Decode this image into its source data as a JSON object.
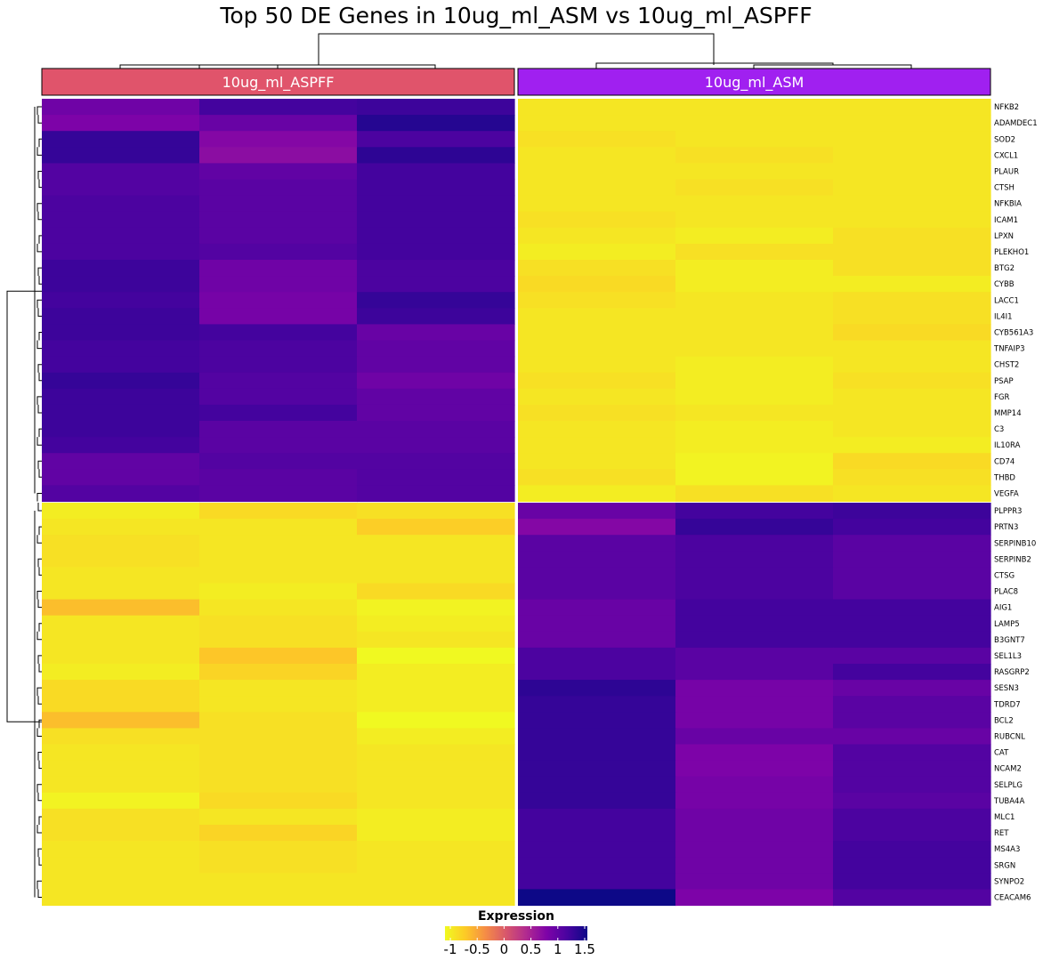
{
  "chart_data": {
    "type": "heatmap",
    "title": "Top 50 DE Genes in 10ug_ml_ASM vs 10ug_ml_ASPFF",
    "groups": [
      {
        "name": "10ug_ml_ASPFF",
        "color": "#e0546b"
      },
      {
        "name": "10ug_ml_ASM",
        "color": "#a020f0"
      }
    ],
    "genes": [
      "NFKB2",
      "ADAMDEC1",
      "SOD2",
      "CXCL1",
      "PLAUR",
      "CTSH",
      "NFKBIA",
      "ICAM1",
      "LPXN",
      "PLEKHO1",
      "BTG2",
      "CYBB",
      "LACC1",
      "IL4I1",
      "CYB561A3",
      "TNFAIP3",
      "CHST2",
      "PSAP",
      "FGR",
      "MMP14",
      "C3",
      "IL10RA",
      "CD74",
      "THBD",
      "VEGFA",
      "PLPPR3",
      "PRTN3",
      "SERPINB10",
      "SERPINB2",
      "CTSG",
      "PLAC8",
      "AIG1",
      "LAMP5",
      "B3GNT7",
      "SEL1L3",
      "RASGRP2",
      "SESN3",
      "TDRD7",
      "BCL2",
      "RUBCNL",
      "CAT",
      "NCAM2",
      "SELPLG",
      "TUBA4A",
      "MLC1",
      "RET",
      "MS4A3",
      "SRGN",
      "SYNPO2",
      "CEACAM6"
    ],
    "values": [
      [
        0.9,
        1.2,
        1.25,
        -0.95,
        -0.95,
        -0.95
      ],
      [
        0.8,
        0.95,
        1.4,
        -0.95,
        -0.95,
        -0.95
      ],
      [
        1.3,
        0.75,
        1.15,
        -0.9,
        -0.95,
        -0.95
      ],
      [
        1.3,
        0.7,
        1.35,
        -0.95,
        -0.9,
        -0.95
      ],
      [
        1.1,
        1.0,
        1.2,
        -0.95,
        -0.95,
        -0.95
      ],
      [
        1.1,
        1.05,
        1.2,
        -0.95,
        -0.9,
        -0.95
      ],
      [
        1.15,
        1.05,
        1.2,
        -0.95,
        -0.95,
        -0.95
      ],
      [
        1.15,
        1.05,
        1.2,
        -0.9,
        -0.95,
        -0.95
      ],
      [
        1.15,
        1.05,
        1.2,
        -0.95,
        -1.0,
        -0.9
      ],
      [
        1.15,
        1.1,
        1.2,
        -1.0,
        -0.9,
        -0.9
      ],
      [
        1.25,
        0.9,
        1.15,
        -0.9,
        -1.0,
        -0.9
      ],
      [
        1.25,
        0.9,
        1.15,
        -0.85,
        -1.0,
        -1.0
      ],
      [
        1.2,
        0.85,
        1.3,
        -0.9,
        -0.95,
        -0.9
      ],
      [
        1.25,
        0.85,
        1.25,
        -0.95,
        -0.95,
        -0.9
      ],
      [
        1.25,
        1.2,
        0.95,
        -0.95,
        -0.95,
        -0.85
      ],
      [
        1.2,
        1.15,
        1.0,
        -0.95,
        -0.95,
        -0.95
      ],
      [
        1.2,
        1.15,
        1.0,
        -0.95,
        -1.0,
        -0.95
      ],
      [
        1.3,
        1.1,
        0.9,
        -0.9,
        -1.0,
        -0.9
      ],
      [
        1.25,
        1.1,
        1.0,
        -0.95,
        -1.0,
        -0.95
      ],
      [
        1.25,
        1.2,
        1.0,
        -0.9,
        -0.95,
        -0.95
      ],
      [
        1.25,
        1.05,
        1.05,
        -0.95,
        -1.0,
        -0.95
      ],
      [
        1.2,
        1.05,
        1.05,
        -0.95,
        -1.0,
        -1.0
      ],
      [
        1.0,
        1.1,
        1.1,
        -0.95,
        -1.05,
        -0.85
      ],
      [
        1.0,
        1.05,
        1.1,
        -0.9,
        -1.05,
        -0.9
      ],
      [
        1.1,
        1.05,
        1.1,
        -1.0,
        -0.9,
        -0.95
      ],
      [
        -1.0,
        -0.85,
        -0.9,
        0.95,
        1.2,
        1.25
      ],
      [
        -0.95,
        -0.95,
        -0.75,
        0.75,
        1.3,
        1.2
      ],
      [
        -0.9,
        -0.95,
        -0.95,
        1.05,
        1.15,
        1.05
      ],
      [
        -0.9,
        -0.95,
        -0.95,
        1.05,
        1.15,
        1.05
      ],
      [
        -0.95,
        -0.95,
        -0.95,
        1.05,
        1.15,
        1.05
      ],
      [
        -0.95,
        -1.0,
        -0.85,
        1.05,
        1.15,
        1.05
      ],
      [
        -0.65,
        -0.95,
        -1.05,
        0.95,
        1.2,
        1.2
      ],
      [
        -0.95,
        -0.9,
        -1.0,
        0.95,
        1.2,
        1.2
      ],
      [
        -0.95,
        -0.9,
        -0.95,
        0.95,
        1.2,
        1.2
      ],
      [
        -0.95,
        -0.7,
        -1.15,
        1.15,
        1.05,
        1.05
      ],
      [
        -1.0,
        -0.8,
        -1.0,
        1.15,
        1.05,
        1.2
      ],
      [
        -0.85,
        -0.95,
        -1.0,
        1.35,
        0.85,
        0.95
      ],
      [
        -0.85,
        -0.95,
        -1.0,
        1.3,
        0.85,
        1.05
      ],
      [
        -0.65,
        -0.9,
        -1.1,
        1.3,
        0.85,
        1.05
      ],
      [
        -0.9,
        -0.9,
        -1.0,
        1.3,
        0.95,
        0.95
      ],
      [
        -0.95,
        -0.9,
        -0.95,
        1.3,
        0.8,
        1.1
      ],
      [
        -0.95,
        -0.9,
        -0.95,
        1.3,
        0.8,
        1.1
      ],
      [
        -0.95,
        -0.9,
        -0.95,
        1.3,
        0.85,
        1.1
      ],
      [
        -1.05,
        -0.85,
        -0.95,
        1.3,
        0.85,
        1.05
      ],
      [
        -0.9,
        -0.95,
        -1.0,
        1.2,
        0.9,
        1.15
      ],
      [
        -0.9,
        -0.8,
        -1.0,
        1.2,
        0.9,
        1.15
      ],
      [
        -0.95,
        -0.9,
        -0.95,
        1.2,
        0.9,
        1.2
      ],
      [
        -0.95,
        -0.9,
        -0.95,
        1.2,
        0.9,
        1.2
      ],
      [
        -0.95,
        -0.95,
        -0.95,
        1.2,
        0.9,
        1.2
      ],
      [
        -0.95,
        -0.95,
        -0.95,
        1.55,
        0.8,
        1.1
      ]
    ],
    "color_scale": [
      "#f0f921",
      "#fdca26",
      "#f58c46",
      "#d8576b",
      "#b12a90",
      "#7e03a8",
      "#4903a0",
      "#0d0887"
    ],
    "color_range": [
      -1.1,
      1.55
    ],
    "legend": {
      "title": "Expression",
      "ticks": [
        -1,
        -0.5,
        0,
        0.5,
        1,
        1.5
      ],
      "tick_labels": [
        "-1",
        "-0.5",
        "0",
        "0.5",
        "1",
        "1.5"
      ],
      "placement": "bottom"
    },
    "row_split_after": 25,
    "column_split_after": 3
  }
}
